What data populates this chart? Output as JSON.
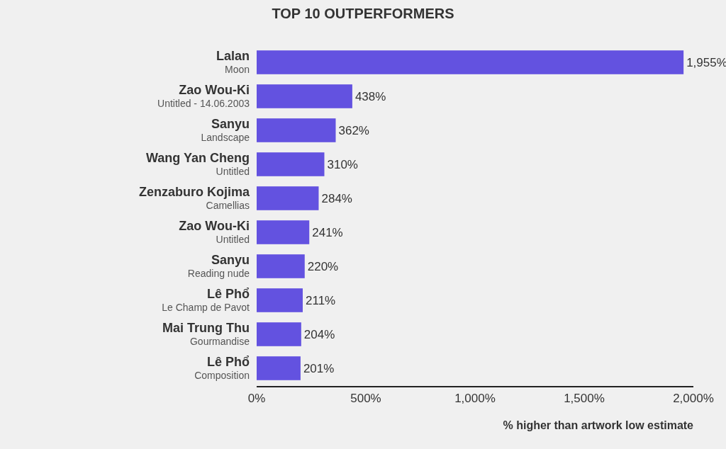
{
  "chart_data": {
    "type": "bar",
    "orientation": "horizontal",
    "title": "TOP 10 OUTPERFORMERS",
    "xlabel": "% higher than artwork low estimate",
    "categories": [
      "Lalan\nMoon",
      "Zao Wou-Ki\nUntitled - 14.06.2003",
      "Sanyu\nLandscape",
      "Wang Yan Cheng\nUntitled",
      "Zenzaburo Kojima\nCamellias",
      "Zao Wou-Ki\nUntitled",
      "Sanyu\nReading nude",
      "Lê Phổ\nLe Champ de Pavot",
      "Mai Trung Thu\nGourmandise",
      "Lê Phổ\nComposition"
    ],
    "values": [
      1955,
      438,
      362,
      310,
      284,
      241,
      220,
      211,
      204,
      201
    ],
    "value_labels": [
      "1,955%",
      "438%",
      "362%",
      "310%",
      "284%",
      "241%",
      "220%",
      "211%",
      "204%",
      "201%"
    ],
    "color": "#6352e0",
    "xlim": [
      0,
      2000
    ],
    "xticks": [
      {
        "value": 0,
        "label": "0%"
      },
      {
        "value": 500,
        "label": "500%"
      },
      {
        "value": 1000,
        "label": "1,000%"
      },
      {
        "value": 1500,
        "label": "1,500%"
      },
      {
        "value": 2000,
        "label": "2,000%"
      }
    ],
    "grid": false
  }
}
